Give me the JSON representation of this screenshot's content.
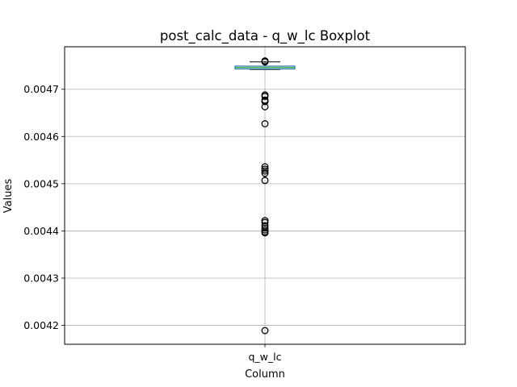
{
  "chart_data": {
    "type": "boxplot",
    "title": "post_calc_data - q_w_lc Boxplot",
    "xlabel": "Column",
    "ylabel": "Values",
    "categories": [
      "q_w_lc"
    ],
    "ylim": [
      0.00416,
      0.00479
    ],
    "yticks": [
      0.0042,
      0.0043,
      0.0044,
      0.0045,
      0.0046,
      0.0047
    ],
    "ytick_labels": [
      "0.0042",
      "0.0043",
      "0.0044",
      "0.0045",
      "0.0046",
      "0.0047"
    ],
    "grid": true,
    "box": {
      "whisker_low": 0.004742,
      "q1": 0.004743,
      "median": 0.004746,
      "q3": 0.004749,
      "whisker_high": 0.004758
    },
    "outliers": [
      0.00476,
      0.004758,
      0.004688,
      0.004685,
      0.004677,
      0.004674,
      0.004663,
      0.004627,
      0.004536,
      0.004531,
      0.004527,
      0.004522,
      0.004507,
      0.004422,
      0.004418,
      0.004411,
      0.004406,
      0.004402,
      0.004398,
      0.004396,
      0.004189
    ],
    "colors": {
      "box": "#1f77b4",
      "median": "#2ca02c",
      "whisker": "#000000",
      "flier": "#000000",
      "grid": "#b0b0b0"
    }
  }
}
